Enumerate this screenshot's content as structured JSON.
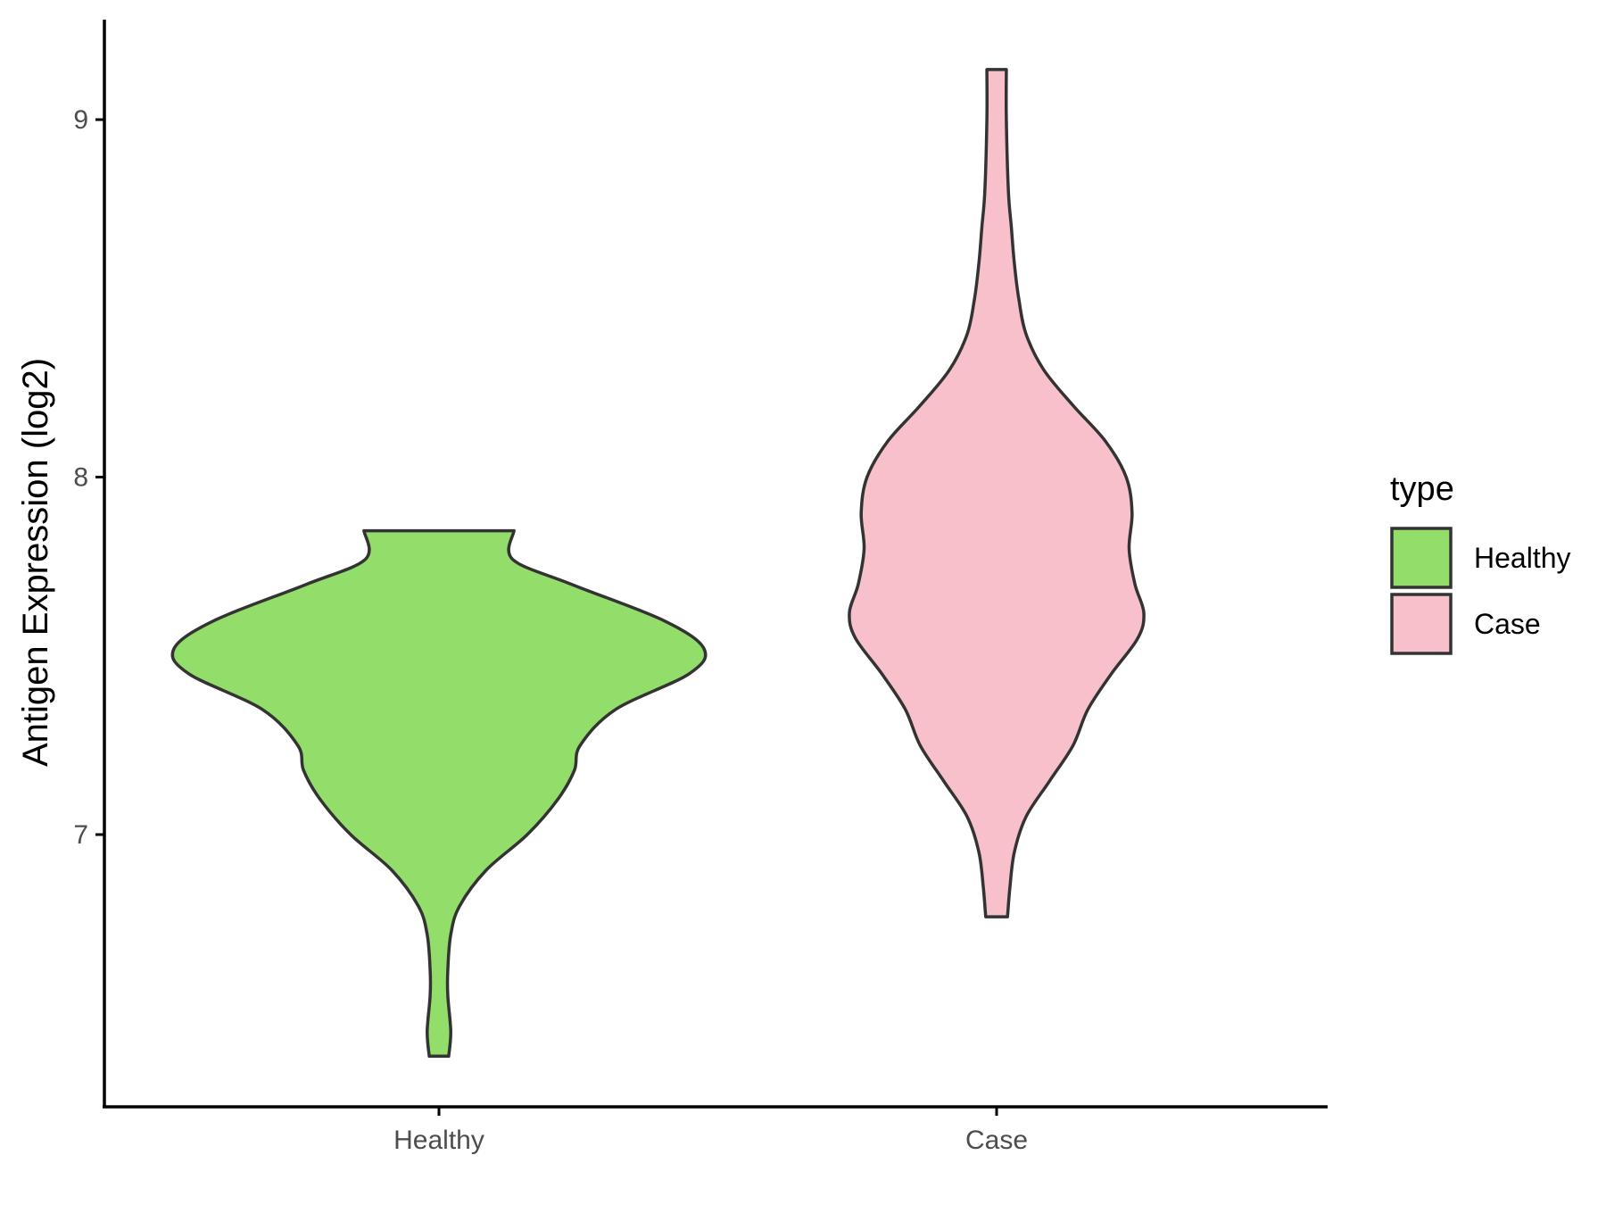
{
  "chart_data": {
    "type": "violin",
    "title": "",
    "xlabel": "",
    "ylabel": "Antigen Expression (log2)",
    "categories": [
      "Healthy",
      "Case"
    ],
    "y_ticks": [
      7,
      8,
      9
    ],
    "ylim": [
      6.24,
      9.3
    ],
    "grid": false,
    "legend": {
      "title": "type",
      "position": "right",
      "entries": [
        {
          "label": "Healthy",
          "color": "#93dd6a"
        },
        {
          "label": "Case",
          "color": "#f7c0cb"
        }
      ]
    },
    "series": [
      {
        "name": "Healthy",
        "color": "#93dd6a",
        "min": 6.38,
        "max": 7.85,
        "density": [
          [
            6.38,
            0.033
          ],
          [
            6.45,
            0.04
          ],
          [
            6.55,
            0.03
          ],
          [
            6.62,
            0.03
          ],
          [
            6.72,
            0.04
          ],
          [
            6.8,
            0.07
          ],
          [
            6.9,
            0.16
          ],
          [
            7.0,
            0.3
          ],
          [
            7.1,
            0.405
          ],
          [
            7.18,
            0.46
          ],
          [
            7.25,
            0.48
          ],
          [
            7.35,
            0.6
          ],
          [
            7.45,
            0.85
          ],
          [
            7.52,
            0.9
          ],
          [
            7.6,
            0.76
          ],
          [
            7.7,
            0.45
          ],
          [
            7.77,
            0.25
          ],
          [
            7.85,
            0.255
          ]
        ]
      },
      {
        "name": "Case",
        "color": "#f7c0cb",
        "min": 6.77,
        "max": 9.14,
        "density": [
          [
            6.77,
            0.037
          ],
          [
            6.85,
            0.045
          ],
          [
            6.95,
            0.06
          ],
          [
            7.05,
            0.1
          ],
          [
            7.15,
            0.18
          ],
          [
            7.25,
            0.26
          ],
          [
            7.35,
            0.31
          ],
          [
            7.45,
            0.39
          ],
          [
            7.55,
            0.48
          ],
          [
            7.62,
            0.5
          ],
          [
            7.7,
            0.47
          ],
          [
            7.8,
            0.45
          ],
          [
            7.9,
            0.46
          ],
          [
            8.0,
            0.44
          ],
          [
            8.1,
            0.37
          ],
          [
            8.2,
            0.26
          ],
          [
            8.3,
            0.16
          ],
          [
            8.4,
            0.1
          ],
          [
            8.5,
            0.075
          ],
          [
            8.6,
            0.06
          ],
          [
            8.7,
            0.05
          ],
          [
            8.8,
            0.04
          ],
          [
            9.0,
            0.033
          ],
          [
            9.14,
            0.033
          ]
        ]
      }
    ]
  }
}
